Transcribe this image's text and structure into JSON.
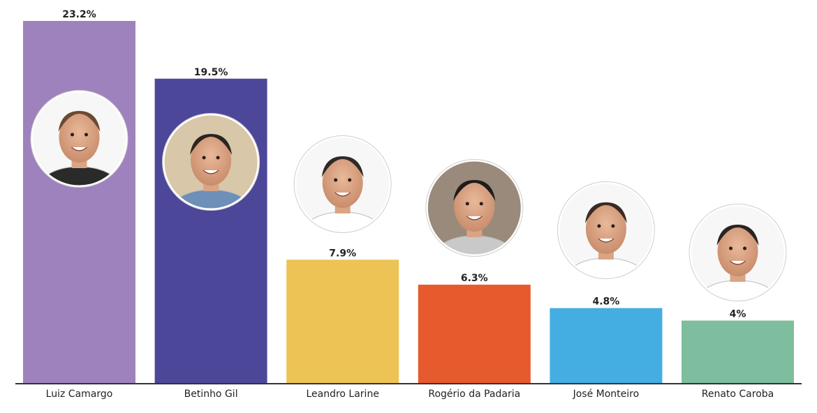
{
  "chart_data": {
    "type": "bar",
    "categories": [
      "Luiz Camargo",
      "Betinho Gil",
      "Leandro Larine",
      "Rogério da Padaria",
      "José Monteiro",
      "Renato Caroba"
    ],
    "values": [
      23.2,
      19.5,
      7.9,
      6.3,
      4.8,
      4
    ],
    "value_labels": [
      "23.2%",
      "19.5%",
      "7.9%",
      "6.3%",
      "4.8%",
      "4%"
    ],
    "colors": [
      "#9e82bd",
      "#4d479a",
      "#ecc354",
      "#e65a2e",
      "#44ade2",
      "#7fbd9f"
    ],
    "ylim": [
      0,
      23.2
    ],
    "grid": false,
    "legend": "none",
    "title": "",
    "xlabel": "",
    "ylabel": ""
  }
}
